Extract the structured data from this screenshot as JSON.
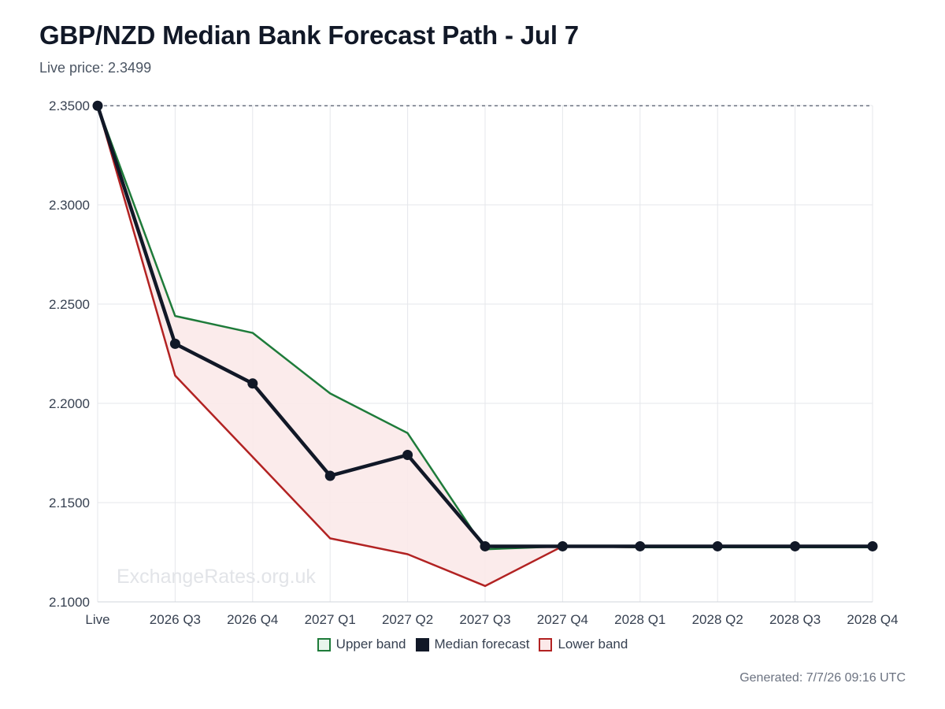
{
  "header": {
    "title": "GBP/NZD Median Bank Forecast Path - Jul 7",
    "subtitle": "Live price: 2.3499"
  },
  "watermark": "ExchangeRates.org.uk",
  "footer": {
    "generated": "Generated: 7/7/26 09:16 UTC"
  },
  "chart_data": {
    "type": "line",
    "categories": [
      "Live",
      "2026 Q3",
      "2026 Q4",
      "2027 Q1",
      "2027 Q2",
      "2027 Q3",
      "2027 Q4",
      "2028 Q1",
      "2028 Q2",
      "2028 Q3",
      "2028 Q4"
    ],
    "ylim": [
      2.1,
      2.35
    ],
    "yticks": [
      2.1,
      2.15,
      2.2,
      2.25,
      2.3,
      2.35
    ],
    "ytick_labels": [
      "2.1000",
      "2.1500",
      "2.2000",
      "2.2500",
      "2.3000",
      "2.3500"
    ],
    "reference_line": {
      "value": 2.3499,
      "style": "dashed"
    },
    "grid": true,
    "legend_position": "bottom-center",
    "series": [
      {
        "name": "Upper band",
        "color": "#1e7b3a",
        "fill": "#e8f5ec",
        "values": [
          2.3499,
          2.244,
          2.2355,
          2.205,
          2.185,
          2.1265,
          2.128,
          2.1275,
          2.1275,
          2.1275,
          2.1275
        ]
      },
      {
        "name": "Median forecast",
        "color": "#111827",
        "fill": "#111827",
        "values": [
          2.3499,
          2.23,
          2.21,
          2.1635,
          2.174,
          2.128,
          2.128,
          2.128,
          2.128,
          2.128,
          2.128
        ]
      },
      {
        "name": "Lower band",
        "color": "#b22222",
        "fill": "#fbe9e9",
        "values": [
          2.3499,
          2.214,
          2.173,
          2.132,
          2.124,
          2.108,
          2.128,
          2.1275,
          2.1275,
          2.1275,
          2.1275
        ]
      }
    ]
  }
}
